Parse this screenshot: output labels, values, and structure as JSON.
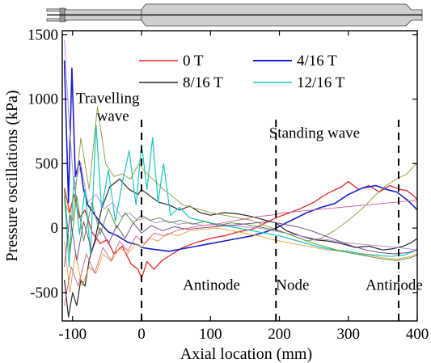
{
  "chart_data": {
    "type": "line",
    "xlabel": "Axial location (mm)",
    "ylabel": "Pressure oscillations (kPa)",
    "xlim": [
      -115,
      400
    ],
    "ylim": [
      -720,
      1530
    ],
    "x_ticks": [
      -100,
      0,
      100,
      200,
      300,
      400
    ],
    "y_ticks": [
      -500,
      0,
      500,
      1000,
      1500
    ],
    "grid": false,
    "legend_position": "top-center",
    "annotations": [
      {
        "text": "Travelling",
        "x": -95,
        "y": 970
      },
      {
        "text": "wave",
        "x": -65,
        "y": 830
      },
      {
        "text": "Standing wave",
        "x": 185,
        "y": 700
      },
      {
        "text": "Antinode",
        "x": 60,
        "y": -480
      },
      {
        "text": "Node",
        "x": 195,
        "y": -480
      },
      {
        "text": "Antinode",
        "x": 325,
        "y": -480
      }
    ],
    "vertical_lines": [
      0,
      195,
      373
    ],
    "series": [
      {
        "name": "0 T",
        "color": "#e8262b",
        "width": 1.3,
        "x": [
          -112,
          -104,
          -98,
          -90,
          -82,
          -72,
          -60,
          -50,
          -40,
          -28,
          -15,
          -5,
          0,
          8,
          18,
          30,
          45,
          60,
          80,
          100,
          120,
          140,
          160,
          180,
          195,
          210,
          230,
          250,
          270,
          290,
          300,
          315,
          330,
          345,
          360,
          375,
          385,
          395,
          400
        ],
        "y": [
          310,
          120,
          260,
          80,
          140,
          -30,
          -120,
          -90,
          -200,
          -140,
          -280,
          -320,
          -390,
          -260,
          -320,
          -250,
          -200,
          -150,
          -110,
          -80,
          -60,
          -30,
          -10,
          40,
          80,
          110,
          150,
          200,
          270,
          320,
          360,
          300,
          330,
          280,
          330,
          300,
          290,
          250,
          220
        ]
      },
      {
        "name": "4/16 T",
        "color": "#1721c8",
        "width": 1.6,
        "x": [
          -112,
          -106,
          -101,
          -96,
          -90,
          -84,
          -78,
          -70,
          -60,
          -48,
          -35,
          -20,
          -5,
          0,
          10,
          25,
          40,
          60,
          80,
          100,
          120,
          140,
          160,
          180,
          195,
          210,
          225,
          240,
          260,
          280,
          300,
          320,
          340,
          355,
          370,
          385,
          395,
          400
        ],
        "y": [
          1300,
          200,
          1240,
          400,
          520,
          300,
          180,
          120,
          40,
          -30,
          -60,
          -110,
          -130,
          -150,
          -160,
          -170,
          -180,
          -160,
          -140,
          -120,
          -100,
          -80,
          -60,
          -30,
          0,
          40,
          80,
          120,
          160,
          190,
          260,
          310,
          330,
          300,
          280,
          220,
          170,
          140
        ]
      },
      {
        "name": "8/16 T",
        "color": "#2b2b2b",
        "width": 1.2,
        "x": [
          -112,
          -106,
          -100,
          -94,
          -88,
          -82,
          -76,
          -68,
          -58,
          -46,
          -32,
          -18,
          -5,
          0,
          12,
          25,
          40,
          55,
          70,
          85,
          100,
          120,
          140,
          160,
          180,
          195,
          210,
          230,
          250,
          270,
          290,
          310,
          330,
          350,
          365,
          380,
          392,
          400
        ],
        "y": [
          -400,
          -690,
          -500,
          -600,
          -400,
          -450,
          -250,
          -100,
          150,
          320,
          380,
          300,
          260,
          300,
          250,
          200,
          180,
          140,
          170,
          120,
          100,
          120,
          110,
          90,
          60,
          40,
          -20,
          -60,
          -90,
          -100,
          -120,
          -150,
          -140,
          -170,
          -160,
          -140,
          -110,
          -80
        ]
      },
      {
        "name": "12/16 T",
        "color": "#19c5bd",
        "width": 1.2,
        "x": [
          -112,
          -105,
          -98,
          -90,
          -82,
          -74,
          -66,
          -58,
          -48,
          -38,
          -28,
          -18,
          -8,
          0,
          8,
          16,
          24,
          32,
          42,
          55,
          70,
          85,
          100,
          120,
          140,
          160,
          180,
          200,
          220,
          240,
          260,
          280,
          300,
          320,
          340,
          360,
          380,
          395,
          400
        ],
        "y": [
          250,
          -300,
          400,
          -50,
          300,
          -200,
          800,
          150,
          450,
          50,
          350,
          600,
          180,
          650,
          300,
          700,
          200,
          500,
          100,
          160,
          80,
          60,
          40,
          20,
          0,
          -20,
          -40,
          -60,
          -90,
          -120,
          -150,
          -170,
          -180,
          -200,
          -210,
          -220,
          -210,
          -180,
          -160
        ]
      },
      {
        "color": "#8a9a3a",
        "width": 0.9,
        "x": [
          -112,
          -100,
          -88,
          -76,
          -64,
          -52,
          -40,
          -28,
          -16,
          -4,
          8,
          20,
          32,
          44,
          60,
          80,
          100,
          120,
          140,
          160,
          180,
          200,
          220,
          240,
          260,
          280,
          300,
          320,
          340,
          355,
          370,
          385,
          395,
          400
        ],
        "y": [
          200,
          60,
          700,
          300,
          940,
          500,
          400,
          420,
          380,
          500,
          420,
          360,
          300,
          250,
          180,
          150,
          120,
          100,
          80,
          60,
          20,
          -20,
          -60,
          -100,
          -80,
          -20,
          60,
          150,
          260,
          330,
          380,
          420,
          480,
          500
        ]
      },
      {
        "color": "#b088e0",
        "width": 0.9,
        "x": [
          -112,
          -106,
          -98,
          -88,
          -78,
          -66,
          -54,
          -42,
          -30,
          -18,
          -6,
          6,
          20,
          36,
          52,
          70,
          90,
          110,
          130,
          150,
          170,
          190,
          210,
          230,
          250,
          270,
          290,
          310,
          330,
          350,
          370,
          385,
          400
        ],
        "y": [
          1460,
          900,
          300,
          500,
          200,
          260,
          150,
          200,
          90,
          120,
          60,
          80,
          40,
          60,
          30,
          40,
          20,
          30,
          20,
          10,
          0,
          -20,
          -40,
          -60,
          -80,
          -90,
          -110,
          -120,
          -130,
          -140,
          -150,
          -160,
          -170
        ]
      },
      {
        "color": "#e7a03a",
        "width": 0.9,
        "x": [
          -112,
          -104,
          -96,
          -86,
          -76,
          -66,
          -56,
          -44,
          -32,
          -20,
          -8,
          0,
          12,
          24,
          38,
          52,
          70,
          90,
          110,
          130,
          150,
          170,
          190,
          210,
          230,
          250,
          270,
          290,
          310,
          330,
          350,
          370,
          390,
          400
        ],
        "y": [
          -100,
          -500,
          -200,
          -450,
          -300,
          -350,
          -200,
          -260,
          -150,
          -200,
          -120,
          -150,
          -80,
          -100,
          -40,
          -60,
          -20,
          -10,
          0,
          -20,
          -40,
          -60,
          -90,
          -110,
          -130,
          -150,
          -170,
          -180,
          -200,
          -210,
          -230,
          -240,
          -220,
          -200
        ]
      },
      {
        "color": "#4f8a3a",
        "width": 0.9,
        "x": [
          -112,
          -104,
          -94,
          -84,
          -72,
          -60,
          -48,
          -36,
          -24,
          -12,
          0,
          12,
          26,
          40,
          56,
          74,
          92,
          110,
          130,
          150,
          170,
          190,
          210,
          230,
          250,
          270,
          290,
          310,
          330,
          350,
          370,
          390,
          400
        ],
        "y": [
          300,
          -200,
          250,
          -100,
          200,
          -50,
          150,
          0,
          120,
          40,
          100,
          60,
          80,
          40,
          60,
          30,
          50,
          20,
          40,
          30,
          10,
          -10,
          -40,
          -80,
          -120,
          -150,
          -180,
          -200,
          -220,
          -240,
          -250,
          -230,
          -210
        ]
      },
      {
        "color": "#6a3d7a",
        "width": 0.9,
        "x": [
          -112,
          -104,
          -94,
          -84,
          -72,
          -60,
          -48,
          -36,
          -24,
          -12,
          0,
          14,
          30,
          48,
          66,
          86,
          106,
          126,
          146,
          166,
          186,
          206,
          226,
          246,
          266,
          286,
          306,
          326,
          346,
          366,
          386,
          400
        ],
        "y": [
          -300,
          100,
          -250,
          50,
          -180,
          0,
          -120,
          20,
          -80,
          40,
          -40,
          20,
          -20,
          10,
          -10,
          0,
          10,
          20,
          30,
          40,
          50,
          30,
          10,
          -20,
          -60,
          -100,
          -140,
          -170,
          -190,
          -200,
          -190,
          -170
        ]
      },
      {
        "color": "#d85a8a",
        "width": 0.9,
        "x": [
          -112,
          -102,
          -92,
          -80,
          -68,
          -56,
          -44,
          -32,
          -20,
          -8,
          4,
          18,
          34,
          50,
          68,
          88,
          108,
          128,
          148,
          168,
          188,
          208,
          228,
          248,
          268,
          288,
          308,
          328,
          348,
          368,
          388,
          400
        ],
        "y": [
          -600,
          -300,
          -450,
          -200,
          -350,
          -150,
          -250,
          -100,
          -180,
          -60,
          -120,
          -40,
          -60,
          -20,
          0,
          20,
          30,
          50,
          70,
          90,
          100,
          120,
          130,
          140,
          150,
          160,
          170,
          180,
          190,
          200,
          210,
          220
        ]
      }
    ]
  },
  "legend": [
    {
      "label": "0 T",
      "color": "#e8262b"
    },
    {
      "label": "4/16 T",
      "color": "#1721c8"
    },
    {
      "label": "8/16 T",
      "color": "#2b2b2b"
    },
    {
      "label": "12/16 T",
      "color": "#19c5bd"
    }
  ]
}
